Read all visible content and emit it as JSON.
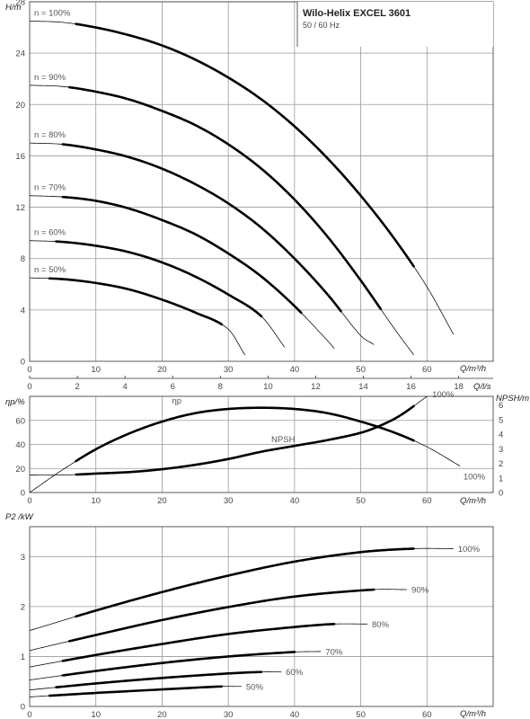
{
  "title": {
    "product": "Wilo-Helix EXCEL 3601",
    "frequency": "50 / 60 Hz"
  },
  "chart_data": [
    {
      "type": "line",
      "xlabel": "Q/m³/h",
      "ylabel": "H/m",
      "x_ticks": [
        "0",
        "10",
        "20",
        "30",
        "40",
        "50",
        "60"
      ],
      "xlim": [
        0,
        70
      ],
      "y_ticks": [
        "0",
        "4",
        "8",
        "12",
        "16",
        "20",
        "24",
        "28"
      ],
      "ylim": [
        0,
        28
      ],
      "secondary_x": {
        "label": "Q/l/s",
        "ticks": [
          "0",
          "2",
          "4",
          "6",
          "8",
          "10",
          "12",
          "14",
          "16",
          "18"
        ],
        "values": [
          0,
          2,
          4,
          6,
          8,
          10,
          12,
          14,
          16,
          18
        ]
      },
      "grid": true,
      "series": [
        {
          "name": "n = 100%",
          "x": [
            0,
            5,
            10,
            15,
            20,
            25,
            30,
            35,
            40,
            45,
            50,
            55,
            60,
            64
          ],
          "y": [
            26.5,
            26.4,
            26.0,
            25.4,
            24.6,
            23.5,
            22.1,
            20.4,
            18.3,
            15.8,
            12.9,
            9.6,
            5.8,
            2.1
          ],
          "operating_range": [
            7,
            58
          ]
        },
        {
          "name": "n = 90%",
          "x": [
            0,
            5,
            10,
            15,
            20,
            25,
            30,
            35,
            40,
            45,
            50,
            55,
            58
          ],
          "y": [
            21.5,
            21.4,
            21.0,
            20.4,
            19.5,
            18.4,
            16.9,
            15.0,
            12.6,
            9.7,
            6.3,
            2.6,
            0.5
          ],
          "operating_range": [
            6,
            53
          ]
        },
        {
          "name": "n = 80%",
          "x": [
            0,
            5,
            10,
            15,
            20,
            25,
            30,
            35,
            40,
            45,
            50,
            52
          ],
          "y": [
            17.0,
            16.9,
            16.5,
            15.9,
            15.0,
            13.8,
            12.3,
            10.4,
            8.0,
            5.2,
            2.0,
            1.3
          ],
          "operating_range": [
            5,
            47
          ]
        },
        {
          "name": "n = 70%",
          "x": [
            0,
            5,
            10,
            15,
            20,
            25,
            30,
            35,
            40,
            45,
            46
          ],
          "y": [
            12.9,
            12.8,
            12.5,
            11.9,
            11.0,
            9.9,
            8.4,
            6.6,
            4.3,
            1.6,
            1.0
          ],
          "operating_range": [
            5,
            41
          ]
        },
        {
          "name": "n = 60%",
          "x": [
            0,
            5,
            10,
            15,
            20,
            25,
            30,
            35,
            38.5
          ],
          "y": [
            9.4,
            9.3,
            9.0,
            8.5,
            7.7,
            6.6,
            5.2,
            3.5,
            1.1
          ],
          "operating_range": [
            4,
            35
          ]
        },
        {
          "name": "n = 50%",
          "x": [
            0,
            5,
            10,
            15,
            20,
            25,
            30,
            32.5
          ],
          "y": [
            6.5,
            6.4,
            6.1,
            5.6,
            4.8,
            3.8,
            2.5,
            0.5
          ],
          "operating_range": [
            3,
            29
          ]
        }
      ]
    },
    {
      "type": "line",
      "xlabel": "Q/m³/h",
      "ylabel": "ηp/%",
      "y2label": "NPSH/m",
      "x_ticks": [
        "0",
        "10",
        "20",
        "30",
        "40",
        "50",
        "60"
      ],
      "xlim": [
        0,
        70
      ],
      "y_ticks": [
        "0",
        "20",
        "40",
        "60"
      ],
      "ylim": [
        0,
        80
      ],
      "y2_ticks": [
        "0",
        "1",
        "2",
        "3",
        "4",
        "5",
        "6"
      ],
      "y2lim": [
        0,
        6.6
      ],
      "grid": true,
      "series": [
        {
          "name": "ηp",
          "axis": "left",
          "end_label": "100%",
          "x": [
            0,
            5,
            10,
            15,
            20,
            25,
            30,
            35,
            40,
            45,
            50,
            55,
            60,
            65
          ],
          "y": [
            0,
            19,
            36,
            49,
            59,
            66,
            69.5,
            70.5,
            69.5,
            66,
            59,
            50,
            38,
            22
          ],
          "operating_range": [
            7,
            58
          ]
        },
        {
          "name": "NPSH",
          "axis": "right",
          "end_label": "100%",
          "x": [
            0,
            5,
            10,
            15,
            20,
            25,
            30,
            35,
            40,
            45,
            50,
            53,
            56,
            60
          ],
          "y": [
            1.2,
            1.2,
            1.3,
            1.4,
            1.6,
            1.9,
            2.3,
            2.8,
            3.2,
            3.6,
            4.1,
            4.6,
            5.3,
            6.6
          ],
          "operating_range": [
            7,
            58
          ]
        }
      ]
    },
    {
      "type": "line",
      "xlabel": "Q/m³/h",
      "ylabel": "P2 /kW",
      "x_ticks": [
        "0",
        "10",
        "20",
        "30",
        "40",
        "50",
        "60"
      ],
      "xlim": [
        0,
        70
      ],
      "y_ticks": [
        "0",
        "1",
        "2",
        "3"
      ],
      "ylim": [
        0,
        3.6
      ],
      "grid": true,
      "series": [
        {
          "name": "100%",
          "x": [
            0,
            10,
            20,
            30,
            40,
            50,
            58,
            64
          ],
          "y": [
            1.52,
            1.92,
            2.29,
            2.62,
            2.9,
            3.09,
            3.16,
            3.16
          ],
          "operating_range": [
            7,
            58
          ]
        },
        {
          "name": "90%",
          "x": [
            0,
            10,
            20,
            30,
            40,
            52,
            57
          ],
          "y": [
            1.12,
            1.43,
            1.73,
            1.99,
            2.2,
            2.34,
            2.34
          ],
          "operating_range": [
            6,
            52
          ]
        },
        {
          "name": "80%",
          "x": [
            0,
            10,
            20,
            30,
            40,
            46,
            51
          ],
          "y": [
            0.79,
            1.03,
            1.25,
            1.45,
            1.59,
            1.65,
            1.65
          ],
          "operating_range": [
            5,
            46
          ]
        },
        {
          "name": "70%",
          "x": [
            0,
            10,
            20,
            30,
            40,
            44
          ],
          "y": [
            0.53,
            0.71,
            0.87,
            1.0,
            1.09,
            1.1
          ],
          "operating_range": [
            5,
            40
          ]
        },
        {
          "name": "60%",
          "x": [
            0,
            10,
            20,
            30,
            35,
            38
          ],
          "y": [
            0.33,
            0.46,
            0.57,
            0.66,
            0.69,
            0.69
          ],
          "operating_range": [
            4,
            35
          ]
        },
        {
          "name": "50%",
          "x": [
            0,
            10,
            20,
            29,
            32
          ],
          "y": [
            0.19,
            0.27,
            0.34,
            0.4,
            0.4
          ],
          "operating_range": [
            3,
            29
          ]
        }
      ]
    }
  ]
}
